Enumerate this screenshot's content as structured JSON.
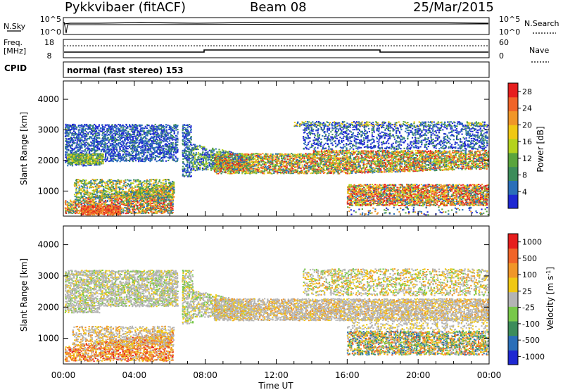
{
  "header": {
    "site": "Pykkvibaer (fitACF)",
    "beam": "Beam 08",
    "date": "25/Mar/2015"
  },
  "noise_panel": {
    "left_label": "N.Sky",
    "right_label": "N.Search",
    "left_ticks": [
      "10^5",
      "10^0"
    ],
    "right_ticks": [
      "10^5",
      "10^0"
    ]
  },
  "freq_panel": {
    "left_label_line1": "Freq.",
    "left_label_line2": "[MHz]",
    "left_ticks": [
      "18",
      "8"
    ],
    "right_label": "Nave",
    "right_ticks": [
      "60",
      "0"
    ]
  },
  "cpid": {
    "label": "CPID",
    "text": "normal (fast stereo) 153"
  },
  "colors": {
    "power": [
      "#1e28d2",
      "#2a6eb8",
      "#3c8c5a",
      "#5aa43c",
      "#b4d21e",
      "#f0c814",
      "#f09628",
      "#f06428",
      "#e61e1e"
    ],
    "velocity": [
      "#1e28d2",
      "#2a6eb8",
      "#3c8c5a",
      "#78c84a",
      "#b4b4b4",
      "#f0c814",
      "#f09628",
      "#f06428",
      "#e61e1e"
    ]
  },
  "chart_data": [
    {
      "type": "heatmap",
      "panel": "power",
      "x_ticks": [
        "00:00",
        "04:00",
        "08:00",
        "12:00",
        "16:00",
        "20:00",
        "00:00"
      ],
      "xlim_hours_ut": [
        0,
        24
      ],
      "ylabel": "Slant Range [km]",
      "y_ticks": [
        1000,
        2000,
        3000,
        4000
      ],
      "ylim": [
        180,
        4600
      ],
      "colorbar_label": "Power [dB]",
      "colorbar_ticks": [
        4,
        8,
        12,
        16,
        20,
        24,
        28
      ],
      "colorbar_range": [
        0,
        30
      ],
      "bands": [
        {
          "t": [
            0,
            6.4
          ],
          "range_km": [
            1800,
            3200
          ],
          "level": "4-12 dB"
        },
        {
          "t": [
            0,
            2
          ],
          "range_km": [
            1950,
            2200
          ],
          "level": "12-20 dB"
        },
        {
          "t": [
            0,
            6.2
          ],
          "range_km": [
            300,
            1300
          ],
          "level": "8-28 dB"
        },
        {
          "t": [
            6.7,
            10
          ],
          "range_km": [
            1800,
            3100
          ],
          "level": "4-12 dB"
        },
        {
          "t": [
            8,
            24
          ],
          "range_km": [
            1600,
            2400
          ],
          "level": "8-28 dB"
        },
        {
          "t": [
            13.5,
            24
          ],
          "range_km": [
            2500,
            3200
          ],
          "level": "4-12 dB"
        },
        {
          "t": [
            16,
            24
          ],
          "range_km": [
            600,
            1200
          ],
          "level": "8-28 dB"
        }
      ]
    },
    {
      "type": "heatmap",
      "panel": "velocity",
      "x_ticks": [
        "00:00",
        "04:00",
        "08:00",
        "12:00",
        "16:00",
        "20:00",
        "00:00"
      ],
      "xlim_hours_ut": [
        0,
        24
      ],
      "xlabel": "Time UT",
      "ylabel": "Slant Range [km]",
      "y_ticks": [
        1000,
        2000,
        3000,
        4000
      ],
      "ylim": [
        180,
        4600
      ],
      "colorbar_label": "Velocity [m s^-1]",
      "colorbar_ticks": [
        1000,
        500,
        100,
        25,
        -25,
        -100,
        -500,
        -1000
      ],
      "bands": [
        {
          "t": [
            0,
            6.4
          ],
          "range_km": [
            1800,
            3200
          ],
          "level": "-25 to 25 m/s"
        },
        {
          "t": [
            0,
            6.2
          ],
          "range_km": [
            300,
            1300
          ],
          "level": "-100 to -500 m/s"
        },
        {
          "t": [
            8,
            24
          ],
          "range_km": [
            1600,
            2400
          ],
          "level": "-25 to 25 m/s"
        },
        {
          "t": [
            16,
            24
          ],
          "range_km": [
            600,
            1200
          ],
          "level": "-100 to 500 m/s"
        }
      ]
    }
  ]
}
